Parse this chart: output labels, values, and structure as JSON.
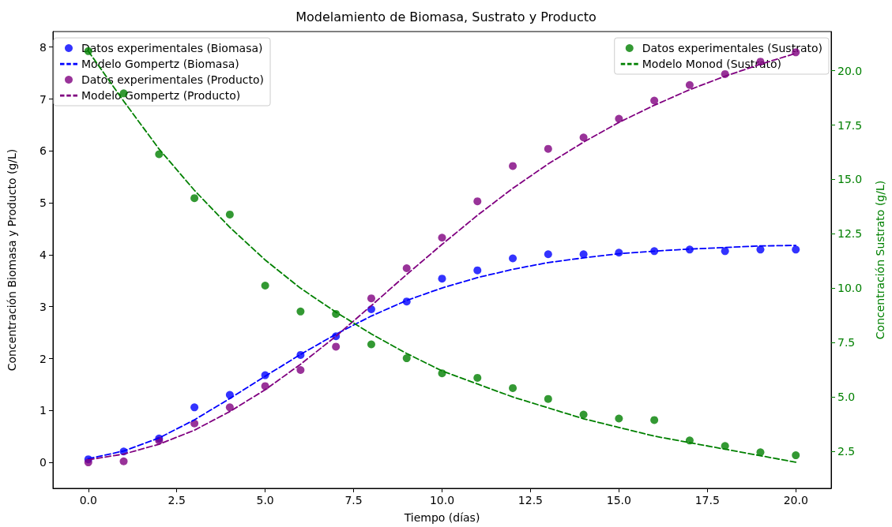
{
  "chart_data": {
    "type": "line",
    "title": "Modelamiento de Biomasa, Sustrato y Producto",
    "xlabel": "Tiempo (días)",
    "ylabel": "Concentración Biomasa y Producto (g/L)",
    "y2label": "Concentración Sustrato (g/L)",
    "x": [
      0,
      1,
      2,
      3,
      4,
      5,
      6,
      7,
      8,
      9,
      10,
      11,
      12,
      13,
      14,
      15,
      16,
      17,
      18,
      19,
      20
    ],
    "series": [
      {
        "name": "Datos experimentales (Biomasa)",
        "type": "scatter",
        "color": "#0000ff",
        "values": [
          0.06,
          0.21,
          0.46,
          1.06,
          1.3,
          1.68,
          2.07,
          2.43,
          2.95,
          3.1,
          3.54,
          3.7,
          3.93,
          4.01,
          4.01,
          4.04,
          4.07,
          4.1,
          4.07,
          4.1,
          4.1
        ]
      },
      {
        "name": "Modelo Gompertz (Biomasa)",
        "marker": "none",
        "color": "#0000ff",
        "values": [
          0.07,
          0.22,
          0.47,
          0.82,
          1.23,
          1.66,
          2.08,
          2.47,
          2.82,
          3.12,
          3.36,
          3.56,
          3.72,
          3.85,
          3.94,
          4.02,
          4.07,
          4.11,
          4.14,
          4.17,
          4.18
        ]
      },
      {
        "name": "Datos experimentales (Producto)",
        "type": "scatter",
        "color": "#800080",
        "values": [
          0.0,
          0.02,
          0.42,
          0.75,
          1.06,
          1.47,
          1.78,
          2.23,
          3.16,
          3.74,
          4.33,
          5.03,
          5.71,
          6.04,
          6.26,
          6.62,
          6.97,
          7.27,
          7.48,
          7.72,
          7.9
        ]
      },
      {
        "name": "Modelo Gompertz (Producto)",
        "marker": "none",
        "color": "#800080",
        "values": [
          0.05,
          0.16,
          0.35,
          0.62,
          0.98,
          1.4,
          1.89,
          2.43,
          3.02,
          3.62,
          4.2,
          4.76,
          5.28,
          5.75,
          6.17,
          6.55,
          6.88,
          7.18,
          7.44,
          7.67,
          7.88
        ]
      },
      {
        "name": "Datos experimentales (Sustrato)",
        "type": "scatter",
        "axis": "y2",
        "color": "#008000",
        "values": [
          20.9,
          18.96,
          16.16,
          14.14,
          13.39,
          10.12,
          8.93,
          8.82,
          7.42,
          6.78,
          6.09,
          5.88,
          5.41,
          4.91,
          4.19,
          4.01,
          3.94,
          3.0,
          2.75,
          2.46,
          2.32
        ]
      },
      {
        "name": "Modelo Monod (Sustrato)",
        "marker": "none",
        "axis": "y2",
        "color": "#008000",
        "values": [
          20.9,
          18.6,
          16.4,
          14.5,
          12.8,
          11.3,
          10.0,
          8.9,
          7.9,
          7.0,
          6.2,
          5.6,
          5.0,
          4.5,
          4.0,
          3.6,
          3.2,
          2.9,
          2.6,
          2.3,
          2.0
        ]
      }
    ],
    "xlim": [
      -1,
      21
    ],
    "xticks": [
      {
        "value": 0,
        "label": "0.0"
      },
      {
        "value": 2.5,
        "label": "2.5"
      },
      {
        "value": 5,
        "label": "5.0"
      },
      {
        "value": 7.5,
        "label": "7.5"
      },
      {
        "value": 10,
        "label": "10.0"
      },
      {
        "value": 12.5,
        "label": "12.5"
      },
      {
        "value": 15,
        "label": "15.0"
      },
      {
        "value": 17.5,
        "label": "17.5"
      },
      {
        "value": 20,
        "label": "20.0"
      }
    ],
    "ylim": [
      -0.5,
      8.3
    ],
    "yticks": [
      0,
      1,
      2,
      3,
      4,
      5,
      6,
      7,
      8
    ],
    "y2lim": [
      0.8,
      21.8
    ],
    "y2ticks": [
      {
        "value": 2.5,
        "label": "2.5"
      },
      {
        "value": 5,
        "label": "5.0"
      },
      {
        "value": 7.5,
        "label": "7.5"
      },
      {
        "value": 10,
        "label": "10.0"
      },
      {
        "value": 12.5,
        "label": "12.5"
      },
      {
        "value": 15,
        "label": "15.0"
      },
      {
        "value": 17.5,
        "label": "17.5"
      },
      {
        "value": 20,
        "label": "20.0"
      }
    ],
    "marker": "circle",
    "line_style": "dashed",
    "grid": false,
    "legend": "top left"
  }
}
